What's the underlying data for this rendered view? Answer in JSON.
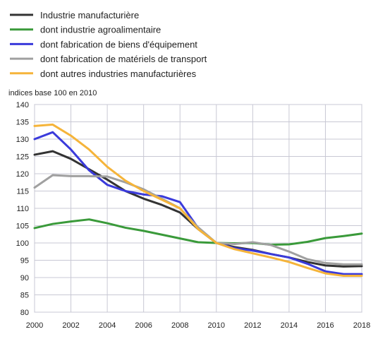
{
  "chart_data": {
    "type": "line",
    "title": "",
    "unit_label": "indices base 100 en 2010",
    "xlabel": "",
    "ylabel": "",
    "xlim": [
      2000,
      2018
    ],
    "ylim": [
      80,
      140
    ],
    "x_ticks": [
      2000,
      2002,
      2004,
      2006,
      2008,
      2010,
      2012,
      2014,
      2016,
      2018
    ],
    "y_ticks": [
      80,
      85,
      90,
      95,
      100,
      105,
      110,
      115,
      120,
      125,
      130,
      135,
      140
    ],
    "grid": true,
    "legend_position": "top-left",
    "x": [
      2000,
      2001,
      2002,
      2003,
      2004,
      2005,
      2006,
      2007,
      2008,
      2009,
      2010,
      2011,
      2012,
      2013,
      2014,
      2015,
      2016,
      2017,
      2018
    ],
    "series": [
      {
        "name": "Industrie manufacturière",
        "color": "#333333",
        "values": [
          125.5,
          126.5,
          124.3,
          121.3,
          118.3,
          115.0,
          112.8,
          111.0,
          108.8,
          104.0,
          100.0,
          98.8,
          98.0,
          96.8,
          95.8,
          94.5,
          93.5,
          93.2,
          93.3
        ]
      },
      {
        "name": "dont industrie agroalimentaire",
        "color": "#3a9a3a",
        "values": [
          104.3,
          105.5,
          106.2,
          106.8,
          105.7,
          104.4,
          103.5,
          102.4,
          101.3,
          100.2,
          100.0,
          99.9,
          100.0,
          99.5,
          99.6,
          100.3,
          101.4,
          102.0,
          102.7
        ]
      },
      {
        "name": "dont fabrication de biens d'équipement",
        "color": "#3a3adb",
        "values": [
          130.0,
          132.0,
          127.0,
          121.0,
          116.8,
          115.0,
          114.0,
          113.5,
          111.8,
          104.3,
          100.0,
          98.5,
          97.8,
          96.8,
          95.8,
          94.0,
          91.8,
          91.0,
          91.0
        ]
      },
      {
        "name": "dont fabrication de matériels de transport",
        "color": "#a0a0a0",
        "values": [
          116.0,
          119.6,
          119.3,
          119.3,
          119.2,
          117.5,
          115.5,
          112.8,
          110.0,
          104.5,
          100.0,
          99.7,
          100.2,
          99.4,
          97.5,
          95.3,
          94.2,
          93.8,
          93.8
        ]
      },
      {
        "name": "dont autres industries manufacturières",
        "color": "#f5b43a",
        "values": [
          133.8,
          134.2,
          131.0,
          127.0,
          122.0,
          118.0,
          115.0,
          112.5,
          110.0,
          104.0,
          100.0,
          98.2,
          97.0,
          95.8,
          94.5,
          92.8,
          91.2,
          90.5,
          90.5
        ]
      }
    ]
  }
}
